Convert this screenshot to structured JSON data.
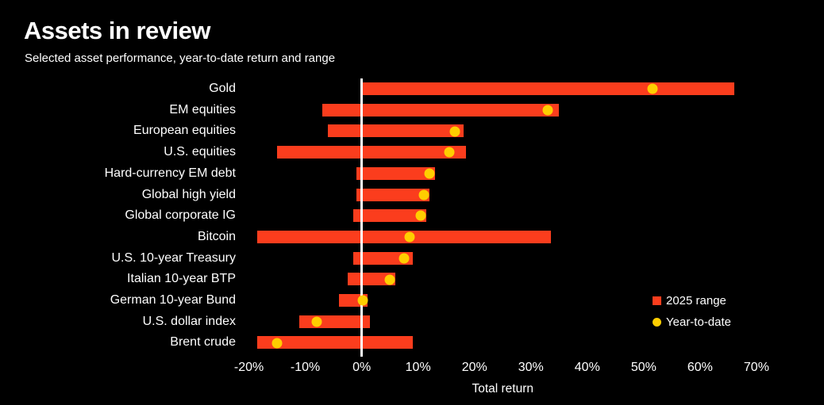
{
  "header": {
    "title": "Assets in review",
    "subtitle": "Selected asset performance, year-to-date return and range"
  },
  "chart_data": {
    "type": "bar",
    "variant": "horizontal-range-bars-with-ytd-dots",
    "title": "Assets in review",
    "subtitle": "Selected asset performance, year-to-date return and range",
    "xlabel": "Total return",
    "xlim": [
      -20.5,
      75.5
    ],
    "x_tick_values": [
      -20,
      -10,
      0,
      10,
      20,
      30,
      40,
      50,
      60,
      70
    ],
    "x_ticks": [
      "-20%",
      "-10%",
      "0%",
      "10%",
      "20%",
      "30%",
      "40%",
      "50%",
      "60%",
      "70%"
    ],
    "grid": false,
    "zero_line_value": 0,
    "categories": [
      "Gold",
      "EM equities",
      "European equities",
      "U.S. equities",
      "Hard-currency EM debt",
      "Global high yield",
      "Global corporate IG",
      "Bitcoin",
      "U.S. 10-year Treasury",
      "Italian 10-year BTP",
      "German 10-year Bund",
      "U.S. dollar index",
      "Brent crude"
    ],
    "series": [
      {
        "name": "2025 range",
        "type": "range-bar",
        "low": [
          0,
          -7,
          -6,
          -15,
          -1,
          -1,
          -1.5,
          -18.5,
          -1.5,
          -2.5,
          -4,
          -11,
          -18.5
        ],
        "high": [
          66,
          35,
          18,
          18.5,
          13,
          12,
          11.5,
          33.5,
          9,
          6,
          1,
          1.5,
          9
        ]
      },
      {
        "name": "Year-to-date",
        "type": "dot",
        "values": [
          51.5,
          33,
          16.5,
          15.5,
          12,
          11,
          10.5,
          8.5,
          7.5,
          5,
          0.2,
          -8,
          -15
        ]
      }
    ],
    "legend": [
      {
        "label": "2025 range",
        "marker": "square",
        "color": "#FB3D1D"
      },
      {
        "label": "Year-to-date",
        "marker": "circle",
        "color": "#FFCE00"
      }
    ],
    "legend_position": "right-bottom",
    "colors": {
      "background": "#000000",
      "text": "#FFFFFF",
      "range_bar": "#FB3D1D",
      "ytd_dot": "#FFCE00",
      "zero_line": "#FFFFFF"
    }
  }
}
